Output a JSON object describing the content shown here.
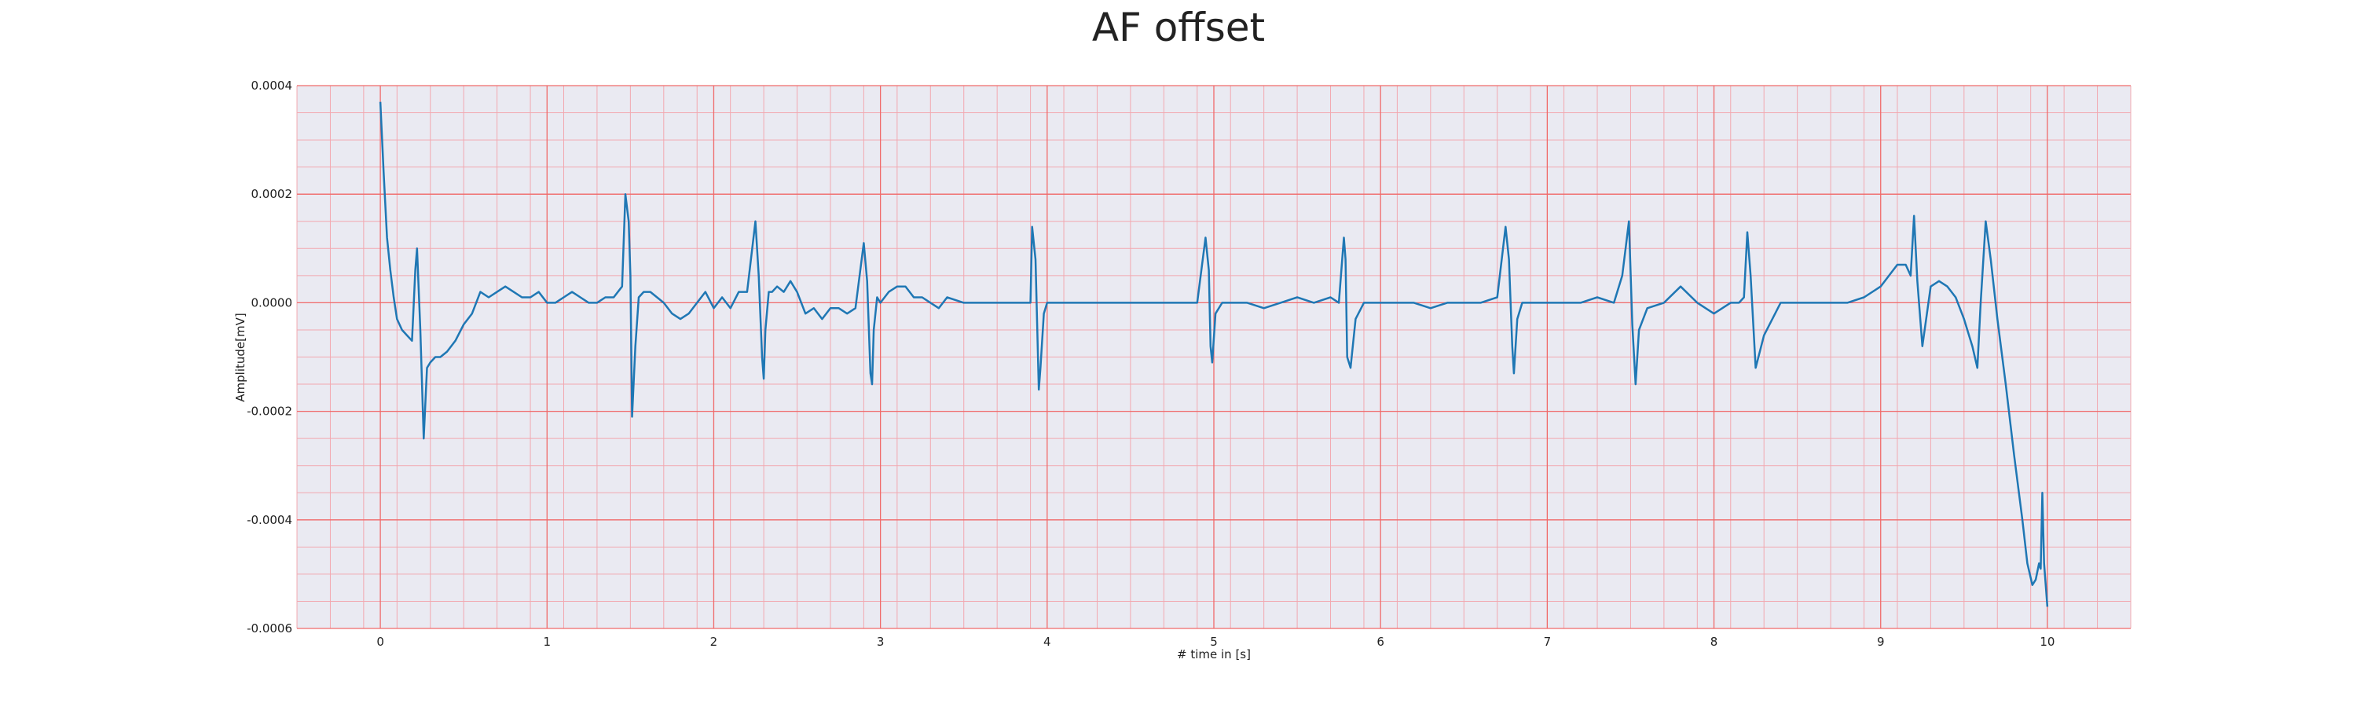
{
  "chart_data": {
    "type": "line",
    "title": "AF offset",
    "xlabel": "# time in [s]",
    "ylabel": "Amplitude[mV]",
    "xlim": [
      -0.5,
      10.5
    ],
    "ylim": [
      -0.0006,
      0.0004
    ],
    "x_ticks": [
      0,
      1,
      2,
      3,
      4,
      5,
      6,
      7,
      8,
      9,
      10
    ],
    "y_ticks": [
      0.0004,
      0.0002,
      0.0,
      -0.0002,
      -0.0004,
      -0.0006
    ],
    "x_tick_labels": [
      "0",
      "1",
      "2",
      "3",
      "4",
      "5",
      "6",
      "7",
      "8",
      "9",
      "10"
    ],
    "y_tick_labels": [
      "0.0004",
      "0.0002",
      "0.0000",
      "-0.0002",
      "-0.0004",
      "-0.0006"
    ],
    "grid": true,
    "minor_grid": true,
    "legend": "none",
    "series": [
      {
        "color": "#1f77b4",
        "x": [
          0.0,
          0.02,
          0.04,
          0.06,
          0.08,
          0.1,
          0.13,
          0.16,
          0.19,
          0.21,
          0.22,
          0.24,
          0.26,
          0.28,
          0.3,
          0.33,
          0.36,
          0.4,
          0.45,
          0.5,
          0.55,
          0.6,
          0.65,
          0.7,
          0.75,
          0.8,
          0.85,
          0.9,
          0.95,
          1.0,
          1.05,
          1.1,
          1.15,
          1.2,
          1.25,
          1.3,
          1.35,
          1.4,
          1.45,
          1.47,
          1.49,
          1.5,
          1.51,
          1.53,
          1.55,
          1.58,
          1.62,
          1.66,
          1.7,
          1.75,
          1.8,
          1.85,
          1.9,
          1.95,
          2.0,
          2.05,
          2.1,
          2.15,
          2.2,
          2.25,
          2.27,
          2.29,
          2.3,
          2.31,
          2.33,
          2.35,
          2.38,
          2.42,
          2.46,
          2.5,
          2.55,
          2.6,
          2.65,
          2.7,
          2.75,
          2.8,
          2.85,
          2.9,
          2.92,
          2.94,
          2.95,
          2.96,
          2.98,
          3.0,
          3.05,
          3.1,
          3.15,
          3.2,
          3.25,
          3.3,
          3.35,
          3.4,
          3.5,
          3.6,
          3.7,
          3.8,
          3.9,
          3.91,
          3.93,
          3.95,
          3.96,
          3.98,
          4.0,
          4.05,
          4.1,
          4.2,
          4.3,
          4.4,
          4.5,
          4.6,
          4.7,
          4.8,
          4.9,
          4.95,
          4.97,
          4.98,
          4.99,
          5.01,
          5.05,
          5.1,
          5.2,
          5.3,
          5.4,
          5.5,
          5.6,
          5.7,
          5.75,
          5.78,
          5.79,
          5.8,
          5.82,
          5.85,
          5.9,
          6.0,
          6.1,
          6.2,
          6.3,
          6.4,
          6.5,
          6.6,
          6.7,
          6.75,
          6.77,
          6.79,
          6.8,
          6.82,
          6.85,
          6.9,
          7.0,
          7.1,
          7.2,
          7.3,
          7.4,
          7.45,
          7.49,
          7.51,
          7.53,
          7.55,
          7.6,
          7.7,
          7.8,
          7.9,
          8.0,
          8.1,
          8.15,
          8.18,
          8.2,
          8.22,
          8.25,
          8.3,
          8.4,
          8.5,
          8.6,
          8.7,
          8.8,
          8.9,
          9.0,
          9.05,
          9.1,
          9.15,
          9.18,
          9.2,
          9.22,
          9.25,
          9.3,
          9.35,
          9.4,
          9.45,
          9.5,
          9.55,
          9.58,
          9.6,
          9.63,
          9.66,
          9.7,
          9.75,
          9.8,
          9.85,
          9.88,
          9.91,
          9.93,
          9.95,
          9.96,
          9.97,
          9.98,
          10.0
        ],
        "y": [
          0.00037,
          0.00024,
          0.00012,
          6e-05,
          1e-05,
          -3e-05,
          -5e-05,
          -6e-05,
          -7e-05,
          6e-05,
          0.0001,
          -5e-05,
          -0.00025,
          -0.00012,
          -0.00011,
          -0.0001,
          -0.0001,
          -9e-05,
          -7e-05,
          -4e-05,
          -2e-05,
          2e-05,
          1e-05,
          2e-05,
          3e-05,
          2e-05,
          1e-05,
          1e-05,
          2e-05,
          0.0,
          0.0,
          1e-05,
          2e-05,
          1e-05,
          0.0,
          0.0,
          1e-05,
          1e-05,
          3e-05,
          0.0002,
          0.00015,
          5e-05,
          -0.00021,
          -8e-05,
          1e-05,
          2e-05,
          2e-05,
          1e-05,
          0.0,
          -2e-05,
          -3e-05,
          -2e-05,
          0.0,
          2e-05,
          -1e-05,
          1e-05,
          -1e-05,
          2e-05,
          2e-05,
          0.00015,
          5e-05,
          -0.0001,
          -0.00014,
          -5e-05,
          2e-05,
          2e-05,
          3e-05,
          2e-05,
          4e-05,
          2e-05,
          -2e-05,
          -1e-05,
          -3e-05,
          -1e-05,
          -1e-05,
          -2e-05,
          -1e-05,
          0.00011,
          4e-05,
          -0.00013,
          -0.00015,
          -5e-05,
          1e-05,
          0.0,
          2e-05,
          3e-05,
          3e-05,
          1e-05,
          1e-05,
          0.0,
          -1e-05,
          1e-05,
          0.0,
          0.0,
          0.0,
          0.0,
          0.0,
          0.00014,
          8e-05,
          -0.00016,
          -0.00012,
          -2e-05,
          0.0,
          0.0,
          0.0,
          0.0,
          0.0,
          0.0,
          0.0,
          0.0,
          0.0,
          0.0,
          0.0,
          0.00012,
          6e-05,
          -8e-05,
          -0.00011,
          -2e-05,
          0.0,
          0.0,
          0.0,
          -1e-05,
          0.0,
          1e-05,
          0.0,
          1e-05,
          0.0,
          0.00012,
          8e-05,
          -0.0001,
          -0.00012,
          -3e-05,
          0.0,
          0.0,
          0.0,
          0.0,
          -1e-05,
          0.0,
          0.0,
          0.0,
          1e-05,
          0.00014,
          8e-05,
          -8e-05,
          -0.00013,
          -3e-05,
          0.0,
          0.0,
          0.0,
          0.0,
          0.0,
          1e-05,
          0.0,
          5e-05,
          0.00015,
          -4e-05,
          -0.00015,
          -5e-05,
          -1e-05,
          0.0,
          3e-05,
          0.0,
          -2e-05,
          0.0,
          0.0,
          1e-05,
          0.00013,
          5e-05,
          -0.00012,
          -6e-05,
          0.0,
          0.0,
          0.0,
          0.0,
          0.0,
          1e-05,
          3e-05,
          5e-05,
          7e-05,
          7e-05,
          5e-05,
          0.00016,
          4e-05,
          -8e-05,
          3e-05,
          4e-05,
          3e-05,
          1e-05,
          -3e-05,
          -8e-05,
          -0.00012,
          0.0,
          0.00015,
          8e-05,
          -3e-05,
          -0.00015,
          -0.00028,
          -0.0004,
          -0.00048,
          -0.00052,
          -0.00051,
          -0.00048,
          -0.00049,
          -0.00035,
          -0.00048,
          -0.00056
        ]
      }
    ]
  }
}
